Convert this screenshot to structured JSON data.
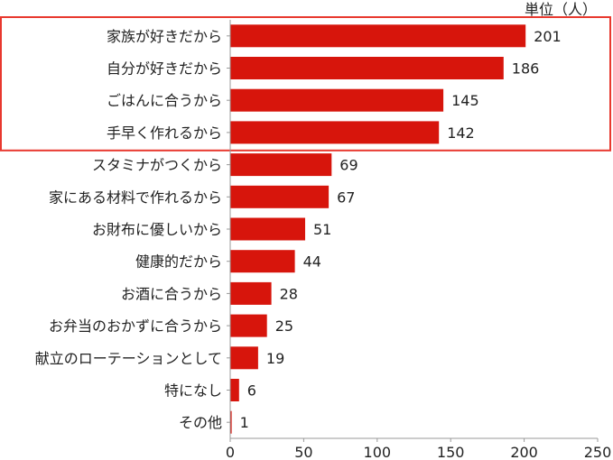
{
  "chart_data": {
    "type": "bar",
    "orientation": "horizontal",
    "unit_label": "単位（人）",
    "categories": [
      "家族が好きだから",
      "自分が好きだから",
      "ごはんに合うから",
      "手早く作れるから",
      "スタミナがつくから",
      "家にある材料で作れるから",
      "お財布に優しいから",
      "健康的だから",
      "お酒に合うから",
      "お弁当のおかずに合うから",
      "献立のローテーションとして",
      "特になし",
      "その他"
    ],
    "values": [
      201,
      186,
      145,
      142,
      69,
      67,
      51,
      44,
      28,
      25,
      19,
      6,
      1
    ],
    "xlim": [
      0,
      250
    ],
    "xticks": [
      "0",
      "50",
      "100",
      "150",
      "200",
      "250"
    ],
    "grid": false,
    "highlight": {
      "from_index": 0,
      "to_index": 3
    },
    "colors": {
      "bar": "#d7150c",
      "highlight_border": "#e8382e",
      "axis": "#999999"
    }
  }
}
